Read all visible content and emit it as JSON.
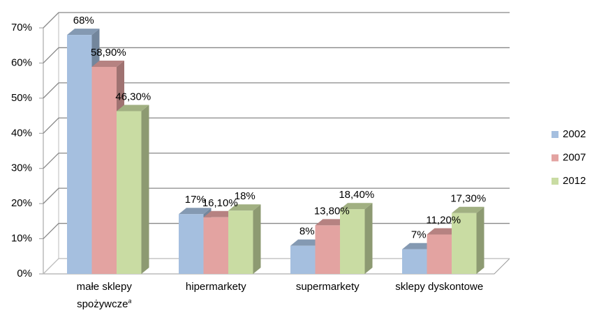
{
  "chart_data": {
    "type": "bar3d",
    "categories": [
      "małe sklepy spożywcze",
      "hipermarkety",
      "supermarkety",
      "sklepy dyskontowe"
    ],
    "footnote_mark": "a",
    "series": [
      {
        "name": "2002",
        "color": "#a5bfdf",
        "values": [
          68,
          17,
          8,
          7
        ],
        "value_labels": [
          "68%",
          "17%",
          "8%",
          "7%"
        ]
      },
      {
        "name": "2007",
        "color": "#e3a3a1",
        "values": [
          58.9,
          16.1,
          13.8,
          11.2
        ],
        "value_labels": [
          "58,90%",
          "16,10%",
          "13,80%",
          "11,20%"
        ]
      },
      {
        "name": "2012",
        "color": "#c9dca3",
        "values": [
          46.3,
          18,
          18.4,
          17.3
        ],
        "value_labels": [
          "46,30%",
          "18%",
          "18,40%",
          "17,30%"
        ]
      }
    ],
    "ylim": [
      0,
      70
    ],
    "yticks": [
      {
        "value": 0,
        "label": "0%"
      },
      {
        "value": 10,
        "label": "10%"
      },
      {
        "value": 20,
        "label": "20%"
      },
      {
        "value": 30,
        "label": "30%"
      },
      {
        "value": 40,
        "label": "40%"
      },
      {
        "value": 50,
        "label": "50%"
      },
      {
        "value": 60,
        "label": "60%"
      },
      {
        "value": 70,
        "label": "70%"
      }
    ],
    "grid": true,
    "legend": "right"
  }
}
